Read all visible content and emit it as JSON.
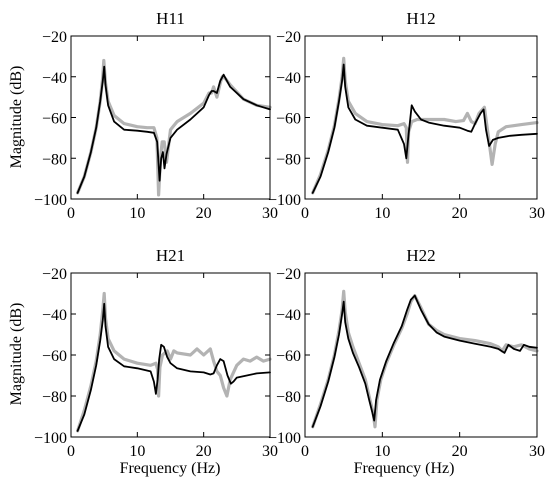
{
  "figure": {
    "ylabel": "Magnitude (dB)",
    "xlabel": "Frequency (Hz)"
  },
  "chart_data": [
    {
      "type": "line",
      "title": "H11",
      "xlabel": "",
      "ylabel": "Magnitude (dB)",
      "xlim": [
        0,
        30
      ],
      "ylim": [
        -100,
        -20
      ],
      "xticks": [
        "0",
        "10",
        "20",
        "30"
      ],
      "yticks": [
        "−20",
        "−40",
        "−60",
        "−80",
        "−100"
      ],
      "grid": false,
      "colors": [
        "#b3b3b3",
        "#000000"
      ],
      "series": [
        {
          "x": [
            1,
            2,
            3,
            3.8,
            4.4,
            4.8,
            4.95,
            5.2,
            5.6,
            6.5,
            8,
            10,
            11.5,
            12.5,
            12.95,
            13.2,
            13.5,
            13.75,
            14.05,
            14.4,
            15,
            16,
            18,
            20,
            20.8,
            21.2,
            21.5,
            22,
            22.5,
            22.8,
            23.3,
            24,
            26,
            28,
            30
          ],
          "y": [
            -97,
            -89,
            -77,
            -65,
            -52,
            -40,
            -32,
            -43,
            -52,
            -59,
            -63,
            -64.5,
            -65,
            -65,
            -70,
            -98,
            -79,
            -72,
            -72,
            -82,
            -66,
            -62,
            -58,
            -53,
            -48,
            -48,
            -45,
            -50,
            -43,
            -40,
            -41,
            -44,
            -51,
            -54,
            -55
          ]
        },
        {
          "x": [
            1,
            2,
            3,
            3.8,
            4.4,
            4.8,
            5,
            5.2,
            5.6,
            6.5,
            8,
            10,
            11.5,
            12.5,
            13,
            13.35,
            13.6,
            13.85,
            14.1,
            14.4,
            15,
            16,
            18,
            20,
            20.8,
            21.2,
            21.5,
            22,
            22.5,
            23,
            23.5,
            24,
            26,
            28,
            30
          ],
          "y": [
            -97,
            -89,
            -77,
            -65,
            -52,
            -42,
            -35,
            -44,
            -54,
            -62,
            -66,
            -66.5,
            -67,
            -67.5,
            -72,
            -91,
            -80,
            -77,
            -85,
            -78,
            -70,
            -66,
            -61,
            -55,
            -49,
            -47,
            -47,
            -48,
            -42,
            -39,
            -42,
            -45,
            -51,
            -54,
            -56
          ]
        }
      ]
    },
    {
      "type": "line",
      "title": "H12",
      "xlabel": "",
      "ylabel": "",
      "xlim": [
        0,
        30
      ],
      "ylim": [
        -100,
        -20
      ],
      "xticks": [
        "0",
        "10",
        "20",
        "30"
      ],
      "yticks": [
        "−20",
        "−40",
        "−60",
        "−80",
        "−100"
      ],
      "grid": false,
      "colors": [
        "#b3b3b3",
        "#000000"
      ],
      "series": [
        {
          "x": [
            1,
            2,
            3,
            3.8,
            4.4,
            4.8,
            5,
            5.2,
            5.6,
            6.5,
            8,
            10,
            12,
            12.8,
            13.1,
            13.25,
            13.4,
            13.8,
            14.5,
            16,
            18,
            19.5,
            20.5,
            21,
            21.5,
            22,
            22.5,
            23.2,
            23.8,
            24.2,
            24.6,
            25,
            26,
            28,
            30
          ],
          "y": [
            -97,
            -88,
            -76,
            -64,
            -51,
            -40,
            -31,
            -42,
            -52,
            -58,
            -62,
            -63.5,
            -64,
            -63,
            -65,
            -82,
            -67,
            -62,
            -61,
            -61,
            -61,
            -62,
            -61.5,
            -58,
            -62,
            -63,
            -58,
            -55,
            -72,
            -83,
            -73,
            -67,
            -64.5,
            -63.5,
            -62.5
          ]
        },
        {
          "x": [
            1,
            2,
            3,
            3.8,
            4.4,
            4.8,
            5,
            5.2,
            5.6,
            6.5,
            8,
            10,
            12,
            12.8,
            13.1,
            13.4,
            13.6,
            13.8,
            14.2,
            15,
            16,
            18,
            20,
            21,
            21.5,
            22,
            22.7,
            23.1,
            23.4,
            23.8,
            24.3,
            25,
            26.5,
            28,
            30
          ],
          "y": [
            -97,
            -89,
            -77,
            -65,
            -52,
            -42,
            -34,
            -45,
            -55,
            -61,
            -64,
            -65,
            -66,
            -73,
            -80,
            -68,
            -61,
            -54,
            -57,
            -61,
            -62.5,
            -64,
            -65,
            -66.5,
            -67,
            -63,
            -58,
            -56,
            -66,
            -74,
            -71,
            -70,
            -69,
            -68.5,
            -68
          ]
        }
      ]
    },
    {
      "type": "line",
      "title": "H21",
      "xlabel": "Frequency (Hz)",
      "ylabel": "Magnitude (dB)",
      "xlim": [
        0,
        30
      ],
      "ylim": [
        -100,
        -20
      ],
      "xticks": [
        "0",
        "10",
        "20",
        "30"
      ],
      "yticks": [
        "−20",
        "−40",
        "−60",
        "−80",
        "−100"
      ],
      "grid": false,
      "colors": [
        "#b3b3b3",
        "#000000"
      ],
      "series": [
        {
          "x": [
            1,
            2,
            3,
            3.8,
            4.4,
            4.8,
            5,
            5.2,
            5.6,
            6.5,
            8,
            10,
            12,
            12.8,
            13.05,
            13.2,
            13.4,
            13.8,
            14.5,
            15,
            15.5,
            16,
            18,
            19,
            20,
            21,
            21.5,
            22,
            22.5,
            23,
            23.5,
            24,
            25,
            26,
            27,
            28,
            29,
            30
          ],
          "y": [
            -97,
            -87,
            -75,
            -63,
            -50,
            -38,
            -30,
            -42,
            -52,
            -58,
            -62,
            -64,
            -65,
            -64,
            -67,
            -80,
            -66,
            -60,
            -58,
            -62,
            -58,
            -59,
            -60,
            -57,
            -60,
            -57,
            -63,
            -68,
            -70,
            -76,
            -80,
            -72,
            -65,
            -62,
            -63,
            -61,
            -63,
            -62
          ]
        },
        {
          "x": [
            1,
            2,
            3,
            3.8,
            4.4,
            4.8,
            5,
            5.2,
            5.6,
            6.5,
            8,
            10,
            12,
            12.5,
            12.8,
            13.05,
            13.3,
            13.6,
            14,
            14.5,
            15,
            16,
            18,
            20,
            21,
            21.5,
            22,
            22.5,
            23,
            23.6,
            24.1,
            24.5,
            25,
            26.5,
            28,
            30
          ],
          "y": [
            -97,
            -89,
            -77,
            -65,
            -53,
            -43,
            -35,
            -46,
            -56,
            -62,
            -65.5,
            -66.5,
            -68,
            -73,
            -79,
            -72,
            -62,
            -55,
            -56,
            -61,
            -64,
            -66.5,
            -68,
            -68.5,
            -69.5,
            -69,
            -65,
            -62,
            -63,
            -70,
            -74,
            -73,
            -71,
            -70,
            -69,
            -68.5
          ]
        }
      ]
    },
    {
      "type": "line",
      "title": "H22",
      "xlabel": "Frequency (Hz)",
      "ylabel": "",
      "xlim": [
        0,
        30
      ],
      "ylim": [
        -100,
        -20
      ],
      "xticks": [
        "0",
        "10",
        "20",
        "30"
      ],
      "yticks": [
        "−20",
        "−40",
        "−60",
        "−80",
        "−100"
      ],
      "grid": false,
      "colors": [
        "#b3b3b3",
        "#000000"
      ],
      "series": [
        {
          "x": [
            1,
            2,
            3,
            3.8,
            4.4,
            4.8,
            5,
            5.2,
            5.6,
            6.2,
            7,
            7.8,
            8.4,
            8.8,
            9.05,
            9.3,
            9.8,
            10.5,
            11.5,
            12.5,
            13.2,
            13.7,
            14.2,
            15,
            16,
            17,
            18,
            20,
            22,
            24,
            25,
            25.5,
            26,
            27,
            28,
            29,
            30
          ],
          "y": [
            -95,
            -84,
            -72,
            -60,
            -48,
            -38,
            -29,
            -39,
            -49,
            -56,
            -64,
            -72,
            -82,
            -88,
            -95,
            -82,
            -72,
            -64,
            -55,
            -47,
            -40,
            -34,
            -31,
            -37,
            -45,
            -48,
            -50,
            -52,
            -53,
            -54.5,
            -56,
            -58,
            -55,
            -56,
            -55,
            -57,
            -58
          ]
        },
        {
          "x": [
            1,
            2,
            3,
            3.8,
            4.4,
            4.8,
            5,
            5.2,
            5.6,
            6.2,
            7,
            7.8,
            8.3,
            8.7,
            8.95,
            9.2,
            9.7,
            10.5,
            11.5,
            12.5,
            13.2,
            13.7,
            14.2,
            15,
            16,
            17,
            18,
            20,
            22,
            24,
            25,
            25.8,
            26.3,
            27,
            27.8,
            28.3,
            29,
            30
          ],
          "y": [
            -95,
            -85,
            -73,
            -61,
            -50,
            -40,
            -34,
            -44,
            -52,
            -59,
            -66,
            -74,
            -82,
            -88,
            -92,
            -82,
            -72,
            -63,
            -54,
            -46,
            -38,
            -33,
            -31,
            -38,
            -45,
            -49,
            -51,
            -53,
            -54.5,
            -56,
            -57,
            -59,
            -55,
            -57,
            -58,
            -55,
            -56,
            -56.5
          ]
        }
      ]
    }
  ]
}
